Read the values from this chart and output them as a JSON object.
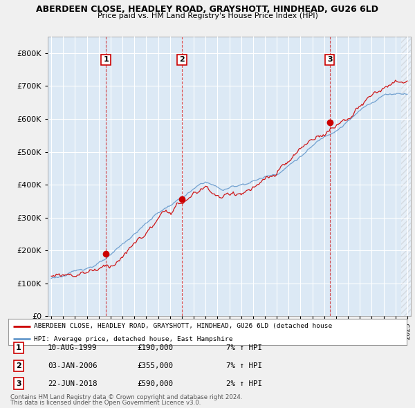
{
  "title1": "ABERDEEN CLOSE, HEADLEY ROAD, GRAYSHOTT, HINDHEAD, GU26 6LD",
  "title2": "Price paid vs. HM Land Registry's House Price Index (HPI)",
  "legend_line1": "ABERDEEN CLOSE, HEADLEY ROAD, GRAYSHOTT, HINDHEAD, GU26 6LD (detached house",
  "legend_line2": "HPI: Average price, detached house, East Hampshire",
  "footer1": "Contains HM Land Registry data © Crown copyright and database right 2024.",
  "footer2": "This data is licensed under the Open Government Licence v3.0.",
  "transactions": [
    {
      "num": "1",
      "date": "10-AUG-1999",
      "price": "£190,000",
      "hpi": "7% ↑ HPI",
      "year": 1999.6,
      "price_val": 190000
    },
    {
      "num": "2",
      "date": "03-JAN-2006",
      "price": "£355,000",
      "hpi": "7% ↑ HPI",
      "year": 2006.0,
      "price_val": 355000
    },
    {
      "num": "3",
      "date": "22-JUN-2018",
      "price": "£590,000",
      "hpi": "2% ↑ HPI",
      "year": 2018.47,
      "price_val": 590000
    }
  ],
  "red_color": "#cc0000",
  "blue_color": "#6699cc",
  "plot_bg": "#dce9f5",
  "fig_bg": "#f0f0f0",
  "grid_color": "#ffffff",
  "yticks": [
    0,
    100000,
    200000,
    300000,
    400000,
    500000,
    600000,
    700000,
    800000
  ],
  "xlim_start": 1994.7,
  "xlim_end": 2025.3,
  "ylim_max": 850000,
  "marker_y": 780000
}
